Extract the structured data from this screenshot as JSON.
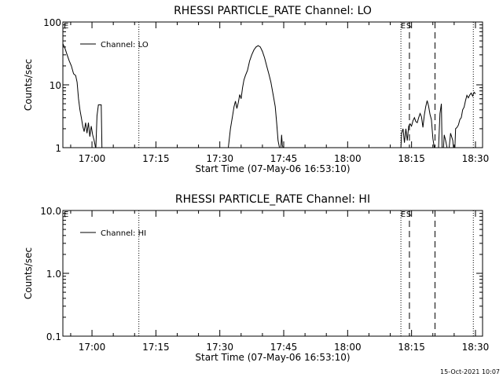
{
  "chart_data": [
    {
      "type": "line",
      "title": "RHESSI PARTICLE_RATE Channel: LO",
      "xlabel": "Start Time (07-May-06 16:53:10)",
      "ylabel": "Counts/sec",
      "y_scale": "log",
      "ylim": [
        1,
        100
      ],
      "xlim": [
        "16:53:10",
        "18:31:40"
      ],
      "x_ticks": [
        "17:00",
        "17:15",
        "17:30",
        "17:45",
        "18:00",
        "18:15",
        "18:30"
      ],
      "y_ticks": [
        "1",
        "10",
        "100"
      ],
      "legend": {
        "position": "top-left",
        "entries": [
          "Channel: LO"
        ]
      },
      "markers": {
        "E": "18:13:00",
        "S": "18:14:30"
      },
      "lines": {
        "dotted": [
          "17:11:00",
          "18:12:30",
          "18:29:30"
        ],
        "dashed": [
          "18:14:30",
          "18:20:30"
        ]
      },
      "series": [
        {
          "name": "Channel: LO",
          "segments": [
            [
              [
                "16:53:10",
                45
              ],
              [
                "16:53:40",
                38
              ],
              [
                "16:54:10",
                30
              ],
              [
                "16:54:40",
                24
              ],
              [
                "16:55:10",
                20
              ],
              [
                "16:55:40",
                15
              ],
              [
                "16:56:10",
                14
              ],
              [
                "16:56:30",
                11
              ],
              [
                "16:56:50",
                6
              ],
              [
                "16:57:10",
                4
              ],
              [
                "16:57:30",
                3
              ],
              [
                "16:57:50",
                2.2
              ],
              [
                "16:58:10",
                1.8
              ],
              [
                "16:58:30",
                2.5
              ],
              [
                "16:58:50",
                1.7
              ],
              [
                "16:59:10",
                2.5
              ],
              [
                "16:59:30",
                1.5
              ],
              [
                "16:59:50",
                2.2
              ],
              [
                "17:00:10",
                1.6
              ],
              [
                "17:00:30",
                1.3
              ],
              [
                "17:00:50",
                1.0
              ]
            ],
            [
              [
                "17:00:55",
                1.0
              ],
              [
                "17:01:10",
                3.2
              ],
              [
                "17:01:30",
                4.8
              ],
              [
                "17:01:50",
                4.8
              ],
              [
                "17:02:10",
                4.8
              ],
              [
                "17:02:20",
                1.0
              ]
            ],
            [
              [
                "17:32:00",
                1.0
              ],
              [
                "17:32:30",
                2.0
              ],
              [
                "17:33:00",
                3.2
              ],
              [
                "17:33:20",
                4.5
              ],
              [
                "17:33:40",
                5.5
              ],
              [
                "17:34:00",
                4.2
              ],
              [
                "17:34:20",
                5.2
              ],
              [
                "17:34:40",
                7.0
              ],
              [
                "17:35:00",
                6.0
              ],
              [
                "17:35:20",
                9.0
              ],
              [
                "17:35:40",
                12
              ],
              [
                "17:36:00",
                14
              ],
              [
                "17:36:30",
                17
              ],
              [
                "17:37:00",
                24
              ],
              [
                "17:37:30",
                30
              ],
              [
                "17:38:00",
                36
              ],
              [
                "17:38:30",
                40
              ],
              [
                "17:39:00",
                42
              ],
              [
                "17:39:30",
                40
              ],
              [
                "17:40:00",
                34
              ],
              [
                "17:40:30",
                27
              ],
              [
                "17:41:00",
                20
              ],
              [
                "17:41:30",
                15
              ],
              [
                "17:42:00",
                11
              ],
              [
                "17:42:30",
                7.0
              ],
              [
                "17:43:00",
                4.5
              ],
              [
                "17:43:20",
                2.5
              ],
              [
                "17:43:40",
                1.3
              ],
              [
                "17:44:00",
                1.0
              ]
            ],
            [
              [
                "17:44:20",
                1.0
              ],
              [
                "17:44:30",
                1.6
              ],
              [
                "17:44:40",
                1.1
              ],
              [
                "17:44:50",
                1.0
              ]
            ],
            [
              [
                "18:12:30",
                1.0
              ],
              [
                "18:12:40",
                1.7
              ],
              [
                "18:13:00",
                2.0
              ],
              [
                "18:13:20",
                1.2
              ],
              [
                "18:13:40",
                2.0
              ],
              [
                "18:14:00",
                1.3
              ],
              [
                "18:14:20",
                2.2
              ],
              [
                "18:14:40",
                2.4
              ],
              [
                "18:15:00",
                2.2
              ],
              [
                "18:15:20",
                2.7
              ],
              [
                "18:15:40",
                3.0
              ],
              [
                "18:16:00",
                2.6
              ],
              [
                "18:16:20",
                2.5
              ],
              [
                "18:16:40",
                3.0
              ],
              [
                "18:17:00",
                3.5
              ],
              [
                "18:17:20",
                3.1
              ],
              [
                "18:17:40",
                2.1
              ],
              [
                "18:18:00",
                3.3
              ],
              [
                "18:18:20",
                4.5
              ],
              [
                "18:18:40",
                5.6
              ],
              [
                "18:19:00",
                4.6
              ],
              [
                "18:19:20",
                3.4
              ],
              [
                "18:19:40",
                2.8
              ],
              [
                "18:20:00",
                1.4
              ],
              [
                "18:20:20",
                1.0
              ]
            ],
            [
              [
                "18:21:20",
                1.0
              ],
              [
                "18:21:40",
                3.5
              ],
              [
                "18:22:00",
                5.0
              ],
              [
                "18:22:10",
                1.0
              ]
            ],
            [
              [
                "18:22:30",
                1.0
              ],
              [
                "18:22:40",
                1.6
              ],
              [
                "18:23:00",
                1.3
              ],
              [
                "18:23:20",
                1.0
              ]
            ],
            [
              [
                "18:23:50",
                1.0
              ],
              [
                "18:24:10",
                1.7
              ],
              [
                "18:24:40",
                1.3
              ],
              [
                "18:24:50",
                1.0
              ]
            ],
            [
              [
                "18:25:10",
                1.0
              ],
              [
                "18:25:20",
                2.0
              ],
              [
                "18:25:40",
                2.1
              ],
              [
                "18:26:00",
                2.3
              ],
              [
                "18:26:20",
                2.8
              ],
              [
                "18:26:40",
                3.0
              ],
              [
                "18:27:00",
                4.0
              ],
              [
                "18:27:20",
                4.4
              ],
              [
                "18:27:40",
                5.6
              ],
              [
                "18:28:00",
                6.8
              ],
              [
                "18:28:20",
                6.2
              ],
              [
                "18:28:40",
                6.9
              ],
              [
                "18:29:00",
                7.4
              ],
              [
                "18:29:20",
                6.6
              ],
              [
                "18:29:40",
                7.6
              ],
              [
                "18:30:00",
                7.2
              ]
            ]
          ]
        }
      ]
    },
    {
      "type": "line",
      "title": "RHESSI PARTICLE_RATE Channel: HI",
      "xlabel": "Start Time (07-May-06 16:53:10)",
      "ylabel": "Counts/sec",
      "y_scale": "log",
      "ylim": [
        0.1,
        10
      ],
      "xlim": [
        "16:53:10",
        "18:31:40"
      ],
      "x_ticks": [
        "17:00",
        "17:15",
        "17:30",
        "17:45",
        "18:00",
        "18:15",
        "18:30"
      ],
      "y_ticks": [
        "0.1",
        "1.0",
        "10.0"
      ],
      "legend": {
        "position": "top-left",
        "entries": [
          "Channel: HI"
        ]
      },
      "markers": {
        "E": "18:13:00",
        "S": "18:14:30"
      },
      "lines": {
        "dotted": [
          "17:11:00",
          "18:12:30",
          "18:29:30"
        ],
        "dashed": [
          "18:14:30",
          "18:20:30"
        ]
      },
      "series": [
        {
          "name": "Channel: HI",
          "segments": []
        }
      ]
    }
  ],
  "footer": {
    "timestamp": "15-Oct-2021 10:07"
  }
}
